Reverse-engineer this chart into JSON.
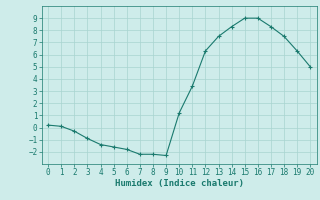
{
  "x": [
    0,
    1,
    2,
    3,
    4,
    5,
    6,
    7,
    8,
    9,
    10,
    11,
    12,
    13,
    14,
    15,
    16,
    17,
    18,
    19,
    20
  ],
  "y": [
    0.2,
    0.1,
    -0.3,
    -0.9,
    -1.4,
    -1.6,
    -1.8,
    -2.2,
    -2.2,
    -2.3,
    1.2,
    3.4,
    6.3,
    7.5,
    8.3,
    9.0,
    9.0,
    8.3,
    7.5,
    6.3,
    5.0
  ],
  "line_color": "#1a7a6e",
  "marker": "+",
  "marker_size": 3,
  "bg_color": "#ceecea",
  "grid_color": "#a8d4d0",
  "xlabel": "Humidex (Indice chaleur)",
  "xlim": [
    -0.5,
    20.5
  ],
  "ylim": [
    -3,
    10
  ],
  "yticks": [
    -2,
    -1,
    0,
    1,
    2,
    3,
    4,
    5,
    6,
    7,
    8,
    9
  ],
  "xticks": [
    0,
    1,
    2,
    3,
    4,
    5,
    6,
    7,
    8,
    9,
    10,
    11,
    12,
    13,
    14,
    15,
    16,
    17,
    18,
    19,
    20
  ],
  "label_fontsize": 6.5,
  "tick_fontsize": 5.5
}
